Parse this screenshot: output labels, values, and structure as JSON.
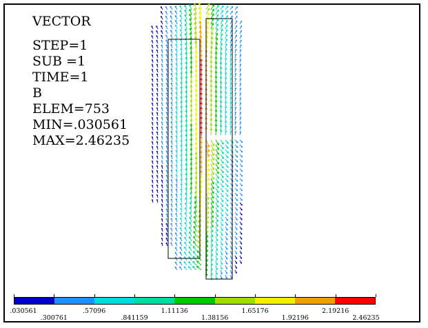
{
  "info": {
    "title": "VECTOR",
    "step": "STEP=1",
    "sub": "SUB =1",
    "time": "TIME=1",
    "item": "B",
    "elem": "ELEM=753",
    "min": "MIN=.030561",
    "max": "MAX=2.46235"
  },
  "legend": {
    "colors": [
      "#0000c8",
      "#1e90ff",
      "#00dcdc",
      "#00dca0",
      "#00c800",
      "#a0dc00",
      "#f0f000",
      "#f0a000",
      "#ff0000"
    ],
    "labels": [
      ".030561",
      ".300761",
      ".57096",
      ".841159",
      "1.11136",
      "1.38156",
      "1.65176",
      "1.92196",
      "2.19216",
      "2.46235"
    ]
  },
  "field": {
    "min": 0.030561,
    "max": 2.46235
  }
}
